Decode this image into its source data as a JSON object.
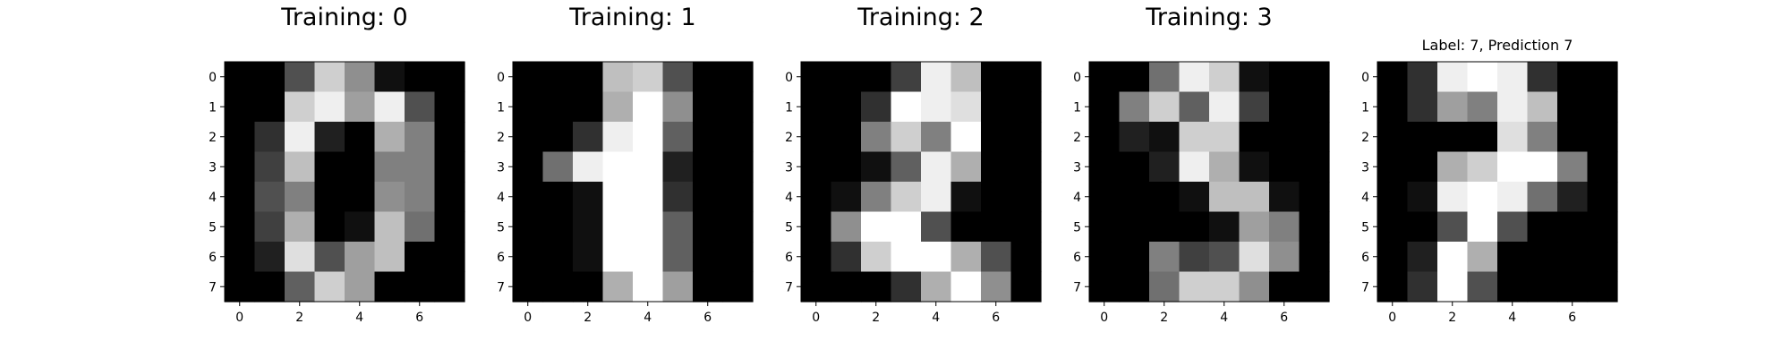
{
  "chart_data": [
    {
      "type": "heatmap",
      "title": "Training: 0",
      "xlabel": "",
      "ylabel": "",
      "x_ticks": [
        "0",
        "2",
        "4",
        "6"
      ],
      "y_ticks": [
        "0",
        "1",
        "2",
        "3",
        "4",
        "5",
        "6",
        "7"
      ],
      "colormap": "gray_r (0 = black, 16 = white)",
      "value_range": [
        0,
        16
      ],
      "grid": false,
      "values": [
        [
          0,
          0,
          5,
          13,
          9,
          1,
          0,
          0
        ],
        [
          0,
          0,
          13,
          15,
          10,
          15,
          5,
          0
        ],
        [
          0,
          3,
          15,
          2,
          0,
          11,
          8,
          0
        ],
        [
          0,
          4,
          12,
          0,
          0,
          8,
          8,
          0
        ],
        [
          0,
          5,
          8,
          0,
          0,
          9,
          8,
          0
        ],
        [
          0,
          4,
          11,
          0,
          1,
          12,
          7,
          0
        ],
        [
          0,
          2,
          14,
          5,
          10,
          12,
          0,
          0
        ],
        [
          0,
          0,
          6,
          13,
          10,
          0,
          0,
          0
        ]
      ]
    },
    {
      "type": "heatmap",
      "title": "Training: 1",
      "xlabel": "",
      "ylabel": "",
      "x_ticks": [
        "0",
        "2",
        "4",
        "6"
      ],
      "y_ticks": [
        "0",
        "1",
        "2",
        "3",
        "4",
        "5",
        "6",
        "7"
      ],
      "colormap": "gray_r (0 = black, 16 = white)",
      "value_range": [
        0,
        16
      ],
      "grid": false,
      "values": [
        [
          0,
          0,
          0,
          12,
          13,
          5,
          0,
          0
        ],
        [
          0,
          0,
          0,
          11,
          16,
          9,
          0,
          0
        ],
        [
          0,
          0,
          3,
          15,
          16,
          6,
          0,
          0
        ],
        [
          0,
          7,
          15,
          16,
          16,
          2,
          0,
          0
        ],
        [
          0,
          0,
          1,
          16,
          16,
          3,
          0,
          0
        ],
        [
          0,
          0,
          1,
          16,
          16,
          6,
          0,
          0
        ],
        [
          0,
          0,
          1,
          16,
          16,
          6,
          0,
          0
        ],
        [
          0,
          0,
          0,
          11,
          16,
          10,
          0,
          0
        ]
      ]
    },
    {
      "type": "heatmap",
      "title": "Training: 2",
      "xlabel": "",
      "ylabel": "",
      "x_ticks": [
        "0",
        "2",
        "4",
        "6"
      ],
      "y_ticks": [
        "0",
        "1",
        "2",
        "3",
        "4",
        "5",
        "6",
        "7"
      ],
      "colormap": "gray_r (0 = black, 16 = white)",
      "value_range": [
        0,
        16
      ],
      "grid": false,
      "values": [
        [
          0,
          0,
          0,
          4,
          15,
          12,
          0,
          0
        ],
        [
          0,
          0,
          3,
          16,
          15,
          14,
          0,
          0
        ],
        [
          0,
          0,
          8,
          13,
          8,
          16,
          0,
          0
        ],
        [
          0,
          0,
          1,
          6,
          15,
          11,
          0,
          0
        ],
        [
          0,
          1,
          8,
          13,
          15,
          1,
          0,
          0
        ],
        [
          0,
          9,
          16,
          16,
          5,
          0,
          0,
          0
        ],
        [
          0,
          3,
          13,
          16,
          16,
          11,
          5,
          0
        ],
        [
          0,
          0,
          0,
          3,
          11,
          16,
          9,
          0
        ]
      ]
    },
    {
      "type": "heatmap",
      "title": "Training: 3",
      "xlabel": "",
      "ylabel": "",
      "x_ticks": [
        "0",
        "2",
        "4",
        "6"
      ],
      "y_ticks": [
        "0",
        "1",
        "2",
        "3",
        "4",
        "5",
        "6",
        "7"
      ],
      "colormap": "gray_r (0 = black, 16 = white)",
      "value_range": [
        0,
        16
      ],
      "grid": false,
      "values": [
        [
          0,
          0,
          7,
          15,
          13,
          1,
          0,
          0
        ],
        [
          0,
          8,
          13,
          6,
          15,
          4,
          0,
          0
        ],
        [
          0,
          2,
          1,
          13,
          13,
          0,
          0,
          0
        ],
        [
          0,
          0,
          2,
          15,
          11,
          1,
          0,
          0
        ],
        [
          0,
          0,
          0,
          1,
          12,
          12,
          1,
          0
        ],
        [
          0,
          0,
          0,
          0,
          1,
          10,
          8,
          0
        ],
        [
          0,
          0,
          8,
          4,
          5,
          14,
          9,
          0
        ],
        [
          0,
          0,
          7,
          13,
          13,
          9,
          0,
          0
        ]
      ]
    },
    {
      "type": "heatmap",
      "title": "Label: 7, Prediction 7",
      "xlabel": "",
      "ylabel": "",
      "x_ticks": [
        "0",
        "2",
        "4",
        "6"
      ],
      "y_ticks": [
        "0",
        "1",
        "2",
        "3",
        "4",
        "5",
        "6",
        "7"
      ],
      "colormap": "gray_r (0 = black, 16 = white)",
      "value_range": [
        0,
        16
      ],
      "grid": false,
      "values": [
        [
          0,
          3,
          15,
          16,
          15,
          3,
          0,
          0
        ],
        [
          0,
          3,
          10,
          8,
          15,
          12,
          0,
          0
        ],
        [
          0,
          0,
          0,
          0,
          14,
          8,
          0,
          0
        ],
        [
          0,
          0,
          11,
          13,
          16,
          16,
          8,
          0
        ],
        [
          0,
          1,
          15,
          16,
          15,
          7,
          2,
          0
        ],
        [
          0,
          0,
          5,
          16,
          5,
          0,
          0,
          0
        ],
        [
          0,
          2,
          16,
          11,
          0,
          0,
          0,
          0
        ],
        [
          0,
          3,
          16,
          5,
          0,
          0,
          0,
          0
        ]
      ]
    }
  ]
}
